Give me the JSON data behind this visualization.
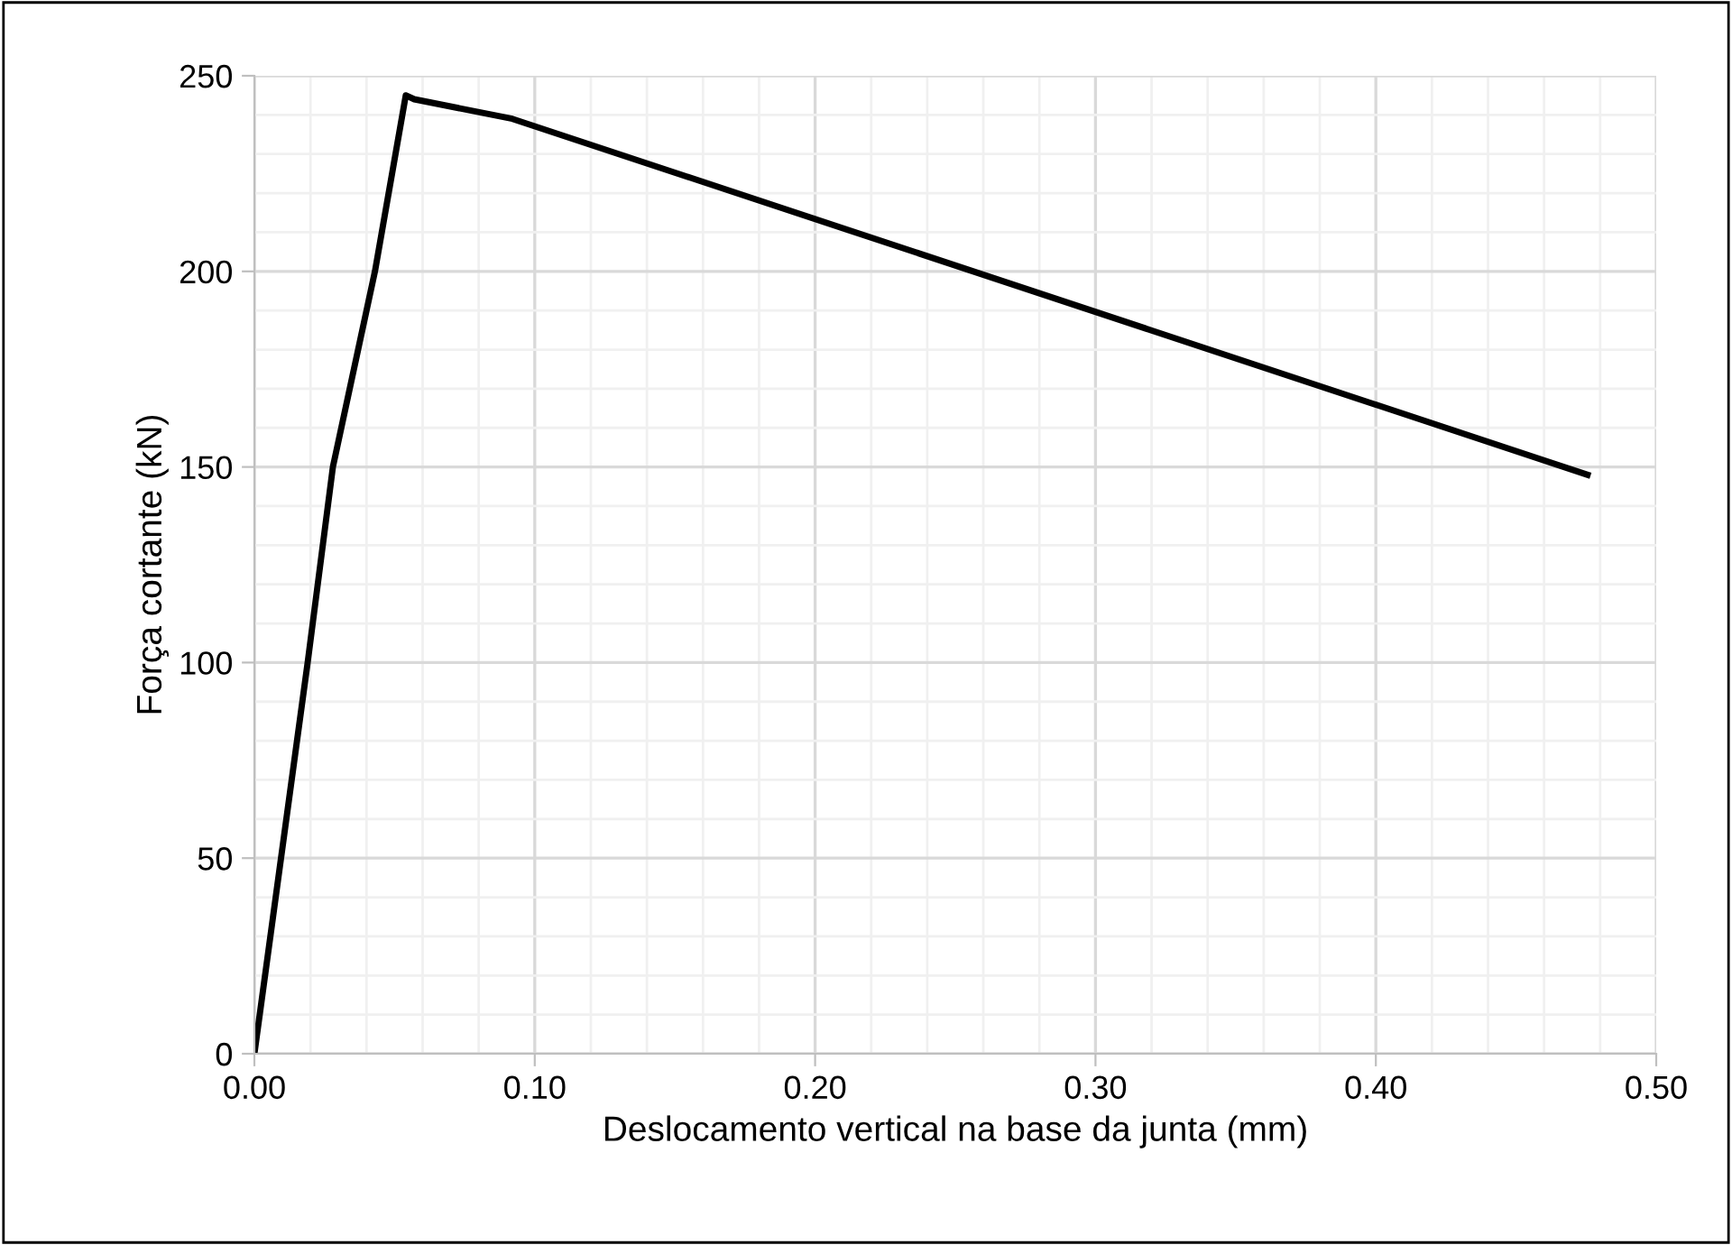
{
  "chart_data": {
    "type": "line",
    "xlabel": "Deslocamento vertical na base da junta (mm)",
    "ylabel": "Força cortante (kN)",
    "series": [
      {
        "color": "#000000",
        "x": [
          0,
          0.019,
          0.028,
          0.043,
          0.054,
          0.057,
          0.092,
          0.4755
        ],
        "values": [
          0,
          100,
          150,
          200,
          245,
          244,
          239,
          148
        ]
      }
    ],
    "xlim": [
      0,
      0.5
    ],
    "xticks": [
      {
        "value": 0,
        "label": "0.00"
      },
      {
        "value": 0.1,
        "label": "0.10"
      },
      {
        "value": 0.2,
        "label": "0.20"
      },
      {
        "value": 0.3,
        "label": "0.30"
      },
      {
        "value": 0.4,
        "label": "0.40"
      },
      {
        "value": 0.5,
        "label": "0.50"
      }
    ],
    "ylim": [
      0,
      250
    ],
    "yticks": [
      0,
      50,
      100,
      150,
      200,
      250
    ],
    "grid": true,
    "marker": "none",
    "line_style": "solid"
  }
}
